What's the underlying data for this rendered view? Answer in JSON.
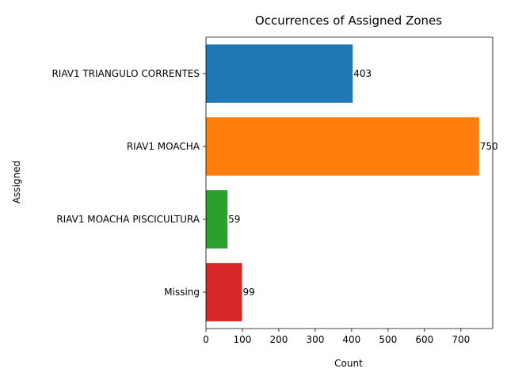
{
  "chart_data": {
    "type": "bar",
    "orientation": "horizontal",
    "title": "Occurrences of Assigned Zones",
    "xlabel": "Count",
    "ylabel": "Assigned",
    "categories": [
      "RIAV1 TRIANGULO CORRENTES",
      "RIAV1 MOACHA",
      "RIAV1 MOACHA PISCICULTURA",
      "Missing"
    ],
    "values": [
      403,
      750,
      59,
      99
    ],
    "colors": [
      "#1f77b4",
      "#ff7f0e",
      "#2ca02c",
      "#d62728"
    ],
    "xlim": [
      0,
      787.5
    ],
    "xticks": [
      0,
      100,
      200,
      300,
      400,
      500,
      600,
      700
    ],
    "grid": false,
    "legend": "none"
  }
}
